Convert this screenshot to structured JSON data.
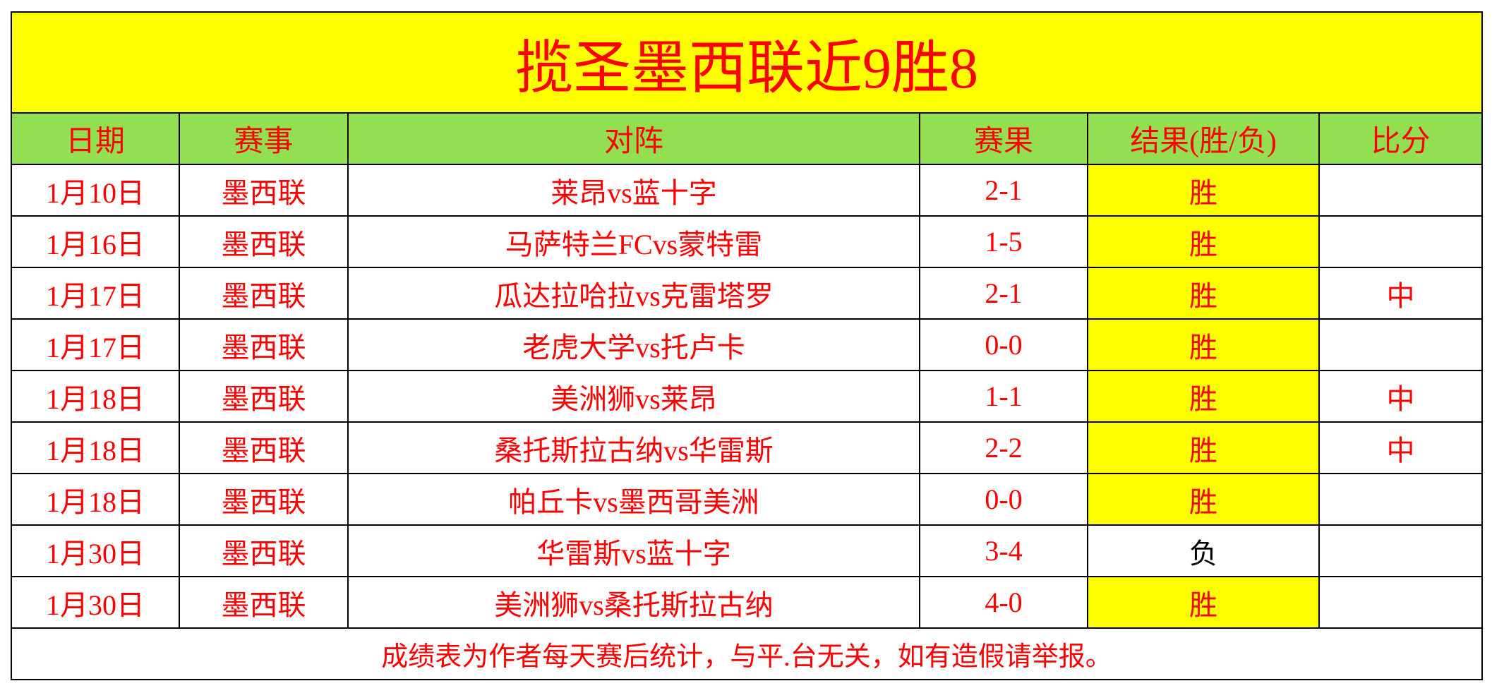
{
  "title": "揽圣墨西联近9胜8",
  "headers": [
    "日期",
    "赛事",
    "对阵",
    "赛果",
    "结果(胜/负)",
    "比分"
  ],
  "rows": [
    {
      "date": "1月10日",
      "league": "墨西联",
      "match": "莱昂vs蓝十字",
      "score": "2-1",
      "result": "胜",
      "mark": ""
    },
    {
      "date": "1月16日",
      "league": "墨西联",
      "match": "马萨特兰FCvs蒙特雷",
      "score": "1-5",
      "result": "胜",
      "mark": ""
    },
    {
      "date": "1月17日",
      "league": "墨西联",
      "match": "瓜达拉哈拉vs克雷塔罗",
      "score": "2-1",
      "result": "胜",
      "mark": "中"
    },
    {
      "date": "1月17日",
      "league": "墨西联",
      "match": "老虎大学vs托卢卡",
      "score": "0-0",
      "result": "胜",
      "mark": ""
    },
    {
      "date": "1月18日",
      "league": "墨西联",
      "match": "美洲狮vs莱昂",
      "score": "1-1",
      "result": "胜",
      "mark": "中"
    },
    {
      "date": "1月18日",
      "league": "墨西联",
      "match": "桑托斯拉古纳vs华雷斯",
      "score": "2-2",
      "result": "胜",
      "mark": "中"
    },
    {
      "date": "1月18日",
      "league": "墨西联",
      "match": "帕丘卡vs墨西哥美洲",
      "score": "0-0",
      "result": "胜",
      "mark": ""
    },
    {
      "date": "1月30日",
      "league": "墨西联",
      "match": "华雷斯vs蓝十字",
      "score": "3-4",
      "result": "负",
      "mark": ""
    },
    {
      "date": "1月30日",
      "league": "墨西联",
      "match": "美洲狮vs桑托斯拉古纳",
      "score": "4-0",
      "result": "胜",
      "mark": ""
    }
  ],
  "footer": "成绩表为作者每天赛后统计，与平.台无关，如有造假请举报。",
  "colors": {
    "title_bg": "#ffff00",
    "header_bg": "#92e051",
    "text": "#ff0000",
    "win_bg": "#ffff00"
  }
}
